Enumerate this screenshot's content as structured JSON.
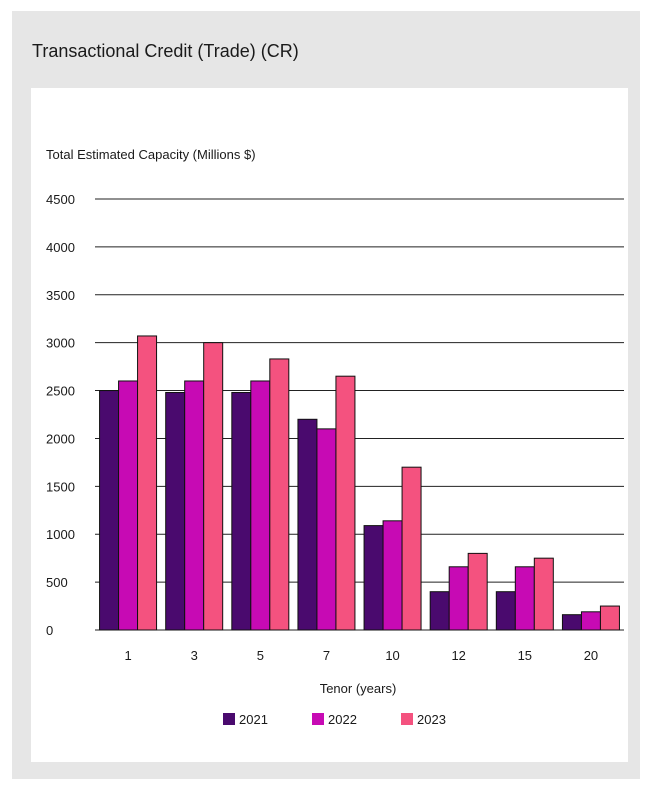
{
  "title": "Transactional Credit (Trade) (CR)",
  "chart_data": {
    "type": "bar",
    "ylabel": "Total Estimated Capacity (Millions $)",
    "xlabel": "Tenor (years)",
    "categories": [
      "1",
      "3",
      "5",
      "7",
      "10",
      "12",
      "15",
      "20"
    ],
    "yticks": [
      0,
      500,
      1000,
      1500,
      2000,
      2500,
      3000,
      3500,
      4000,
      4500
    ],
    "ylim": [
      0,
      4500
    ],
    "grid": true,
    "legend_position": "bottom",
    "series": [
      {
        "name": "2021",
        "color": "#4a0a6e",
        "values": [
          2500,
          2480,
          2480,
          2200,
          1090,
          400,
          400,
          160
        ]
      },
      {
        "name": "2022",
        "color": "#c70ab4",
        "values": [
          2600,
          2600,
          2600,
          2100,
          1140,
          660,
          660,
          190
        ]
      },
      {
        "name": "2023",
        "color": "#f4527f",
        "values": [
          3070,
          3000,
          2830,
          2650,
          1700,
          800,
          750,
          250
        ]
      }
    ]
  }
}
